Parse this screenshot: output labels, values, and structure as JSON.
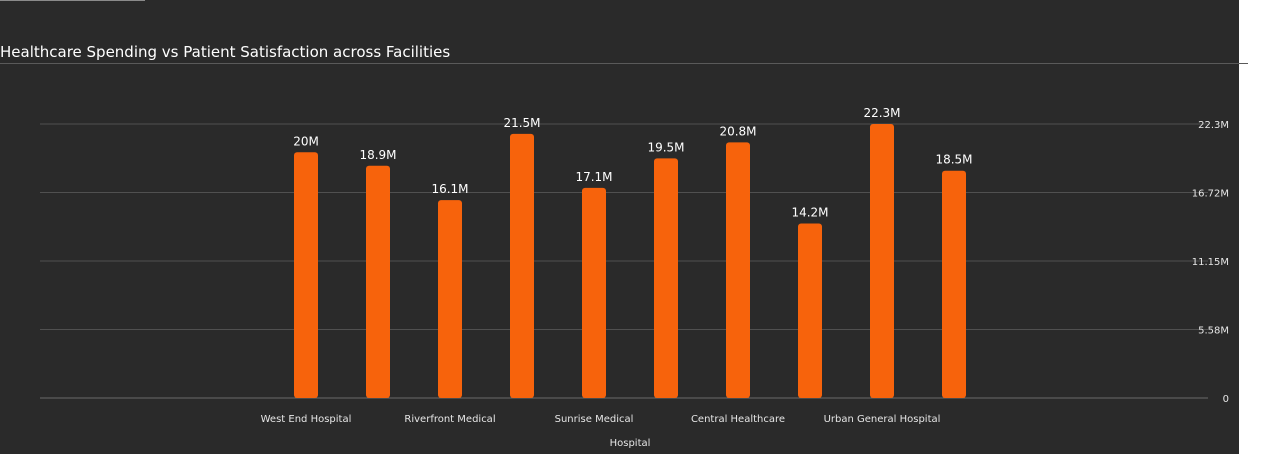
{
  "chart_data": {
    "type": "bar",
    "title": "Healthcare Spending vs Patient Satisfaction across Facilities",
    "xlabel": "Hospital",
    "ylabel": "",
    "categories": [
      "West End Hospital",
      "",
      "Riverfront Medical",
      "",
      "Sunrise Medical",
      "",
      "Central Healthcare",
      "",
      "Urban General Hospital",
      ""
    ],
    "values": [
      20.0,
      18.9,
      16.1,
      21.5,
      17.1,
      19.5,
      20.8,
      14.2,
      22.3,
      18.5
    ],
    "data_labels": [
      "20M",
      "18.9M",
      "16.1M",
      "21.5M",
      "17.1M",
      "19.5M",
      "20.8M",
      "14.2M",
      "22.3M",
      "18.5M"
    ],
    "y_ticks": [
      0,
      5.58,
      11.15,
      16.72,
      22.3
    ],
    "y_tick_labels": [
      "0",
      "5.58M",
      "11.15M",
      "16.72M",
      "22.3M"
    ],
    "ylim": [
      0,
      22.3
    ],
    "y_axis_side": "right",
    "grid": true,
    "legend": "none",
    "bar_color": "#f7630c",
    "background_color": "#2a2a2a"
  }
}
